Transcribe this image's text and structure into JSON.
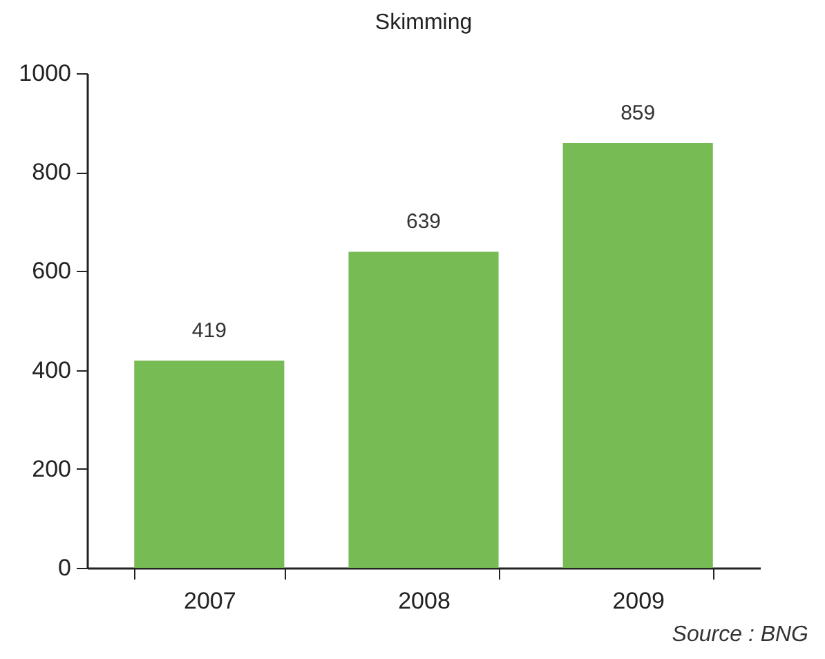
{
  "chart_data": {
    "type": "bar",
    "title": "Skimming",
    "categories": [
      "2007",
      "2008",
      "2009"
    ],
    "values": [
      419,
      639,
      859
    ],
    "color": "#77bb55",
    "ylim": [
      0,
      1000
    ],
    "yticks": [
      0,
      200,
      400,
      600,
      800,
      1000
    ],
    "data_labels": true,
    "grid": false,
    "annotations": [
      "Source : BNG"
    ]
  }
}
